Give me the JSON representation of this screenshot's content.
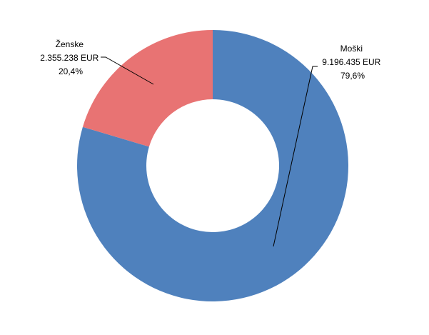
{
  "chart_data": {
    "type": "pie",
    "variant": "donut",
    "title": "",
    "legend": "none",
    "slices": [
      {
        "name": "Moški",
        "amount": "9.196.435 EUR",
        "value": 9196435,
        "percent": "79,6%",
        "color": "#4F81BD"
      },
      {
        "name": "Ženske",
        "amount": "2.355.238 EUR",
        "value": 2355238,
        "percent": "20,4%",
        "color": "#E87373"
      }
    ]
  }
}
